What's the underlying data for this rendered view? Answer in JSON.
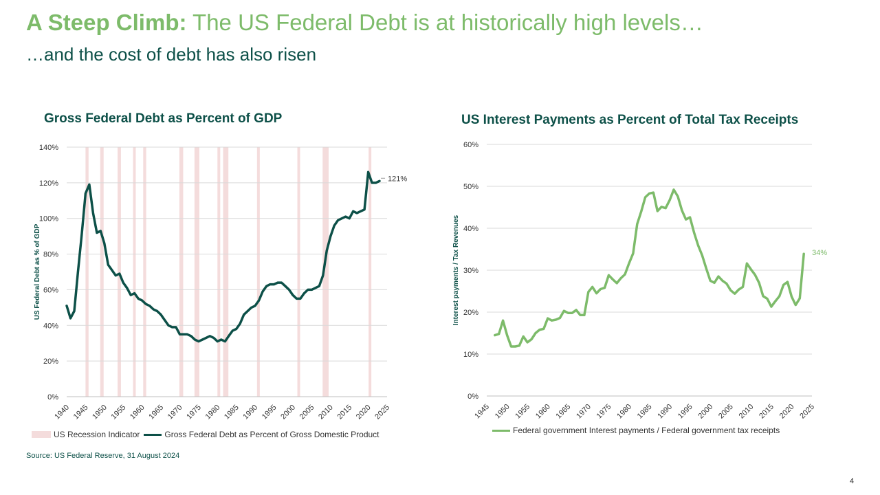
{
  "header": {
    "title_bold": "A Steep Climb:",
    "title_rest": " The US Federal Debt is at historically high levels…",
    "subtitle": "…and the cost of debt has also risen"
  },
  "colors": {
    "debt_line": "#0d5048",
    "interest_line": "#7dbb6a",
    "recession_band": "#f4dcdc",
    "title_green": "#7dbb6a",
    "dark_teal": "#0d5048"
  },
  "chart_data": [
    {
      "type": "line",
      "title": "Gross Federal Debt as Percent of GDP",
      "ylabel": "US Federal Debt as % of GDP",
      "xlabel": "",
      "xlim": [
        1940,
        2025
      ],
      "ylim": [
        0,
        140
      ],
      "x_ticks": [
        "1940",
        "1945",
        "1950",
        "1955",
        "1960",
        "1965",
        "1970",
        "1975",
        "1980",
        "1985",
        "1990",
        "1995",
        "2000",
        "2005",
        "2010",
        "2015",
        "2020",
        "2025"
      ],
      "y_ticks": [
        "0%",
        "20%",
        "40%",
        "60%",
        "80%",
        "100%",
        "120%",
        "140%"
      ],
      "grid": true,
      "legend_position": "bottom",
      "end_label": "121%",
      "recessions": [
        [
          1945,
          1945.8
        ],
        [
          1948.9,
          1949.8
        ],
        [
          1953.5,
          1954.4
        ],
        [
          1957.6,
          1958.3
        ],
        [
          1960.3,
          1961.1
        ],
        [
          1969.9,
          1970.9
        ],
        [
          1973.9,
          1975.2
        ],
        [
          1980,
          1980.5
        ],
        [
          1981.5,
          1982.9
        ],
        [
          1990.5,
          1991.2
        ],
        [
          2001.2,
          2001.9
        ],
        [
          2007.9,
          2009.5
        ],
        [
          2020.1,
          2020.5
        ]
      ],
      "series": [
        {
          "name": "US Recession Indicator",
          "values": []
        },
        {
          "name": "Gross Federal Debt as Percent of Gross Domestic Product",
          "x": [
            1940,
            1941,
            1942,
            1943,
            1944,
            1945,
            1946,
            1947,
            1948,
            1949,
            1950,
            1951,
            1952,
            1953,
            1954,
            1955,
            1956,
            1957,
            1958,
            1959,
            1960,
            1961,
            1962,
            1963,
            1964,
            1965,
            1966,
            1967,
            1968,
            1969,
            1970,
            1971,
            1972,
            1973,
            1974,
            1975,
            1976,
            1977,
            1978,
            1979,
            1980,
            1981,
            1982,
            1983,
            1984,
            1985,
            1986,
            1987,
            1988,
            1989,
            1990,
            1991,
            1992,
            1993,
            1994,
            1995,
            1996,
            1997,
            1998,
            1999,
            2000,
            2001,
            2002,
            2003,
            2004,
            2005,
            2006,
            2007,
            2008,
            2009,
            2010,
            2011,
            2012,
            2013,
            2014,
            2015,
            2016,
            2017,
            2018,
            2019,
            2020,
            2021,
            2022,
            2023
          ],
          "values": [
            51,
            44,
            48,
            70,
            91,
            114,
            119,
            103,
            92,
            93,
            86,
            74,
            71,
            68,
            69,
            64,
            61,
            57,
            58,
            55,
            54,
            52,
            51,
            49,
            48,
            46,
            43,
            40,
            39,
            39,
            35,
            35,
            35,
            34,
            32,
            31,
            32,
            33,
            34,
            33,
            31,
            32,
            31,
            34,
            37,
            38,
            41,
            46,
            48,
            50,
            51,
            54,
            59,
            62,
            63,
            63,
            64,
            64,
            62,
            60,
            57,
            55,
            55,
            58,
            60,
            60,
            61,
            62,
            68,
            82,
            90,
            96,
            99,
            100,
            101,
            100,
            104,
            103,
            104,
            105,
            126,
            120,
            120,
            121
          ]
        }
      ]
    },
    {
      "type": "line",
      "title": "US Interest Payments as Percent of Total Tax Receipts",
      "ylabel": "Interest payments / Tax Revenues",
      "xlabel": "",
      "xlim": [
        1945,
        2025
      ],
      "ylim": [
        0,
        60
      ],
      "x_ticks": [
        "1945",
        "1950",
        "1955",
        "1960",
        "1965",
        "1970",
        "1975",
        "1980",
        "1985",
        "1990",
        "1995",
        "2000",
        "2005",
        "2010",
        "2015",
        "2020",
        "2025"
      ],
      "y_ticks": [
        "0%",
        "10%",
        "20%",
        "30%",
        "40%",
        "50%",
        "60%"
      ],
      "grid": true,
      "legend_position": "bottom",
      "end_label": "34%",
      "series": [
        {
          "name": "Federal government  Interest payments / Federal government tax receipts",
          "x": [
            1947,
            1948,
            1949,
            1950,
            1951,
            1952,
            1953,
            1954,
            1955,
            1956,
            1957,
            1958,
            1959,
            1960,
            1961,
            1962,
            1963,
            1964,
            1965,
            1966,
            1967,
            1968,
            1969,
            1970,
            1971,
            1972,
            1973,
            1974,
            1975,
            1976,
            1977,
            1978,
            1979,
            1980,
            1981,
            1982,
            1983,
            1984,
            1985,
            1986,
            1987,
            1988,
            1989,
            1990,
            1991,
            1992,
            1993,
            1994,
            1995,
            1996,
            1997,
            1998,
            1999,
            2000,
            2001,
            2002,
            2003,
            2004,
            2005,
            2006,
            2007,
            2008,
            2009,
            2010,
            2011,
            2012,
            2013,
            2014,
            2015,
            2016,
            2017,
            2018,
            2019,
            2020,
            2021,
            2022,
            2023
          ],
          "values": [
            14.5,
            14.8,
            18,
            14.5,
            11.8,
            11.8,
            12,
            14.2,
            12.8,
            13.5,
            15,
            15.8,
            16,
            18.5,
            18,
            18.2,
            18.6,
            20.3,
            19.8,
            19.8,
            20.5,
            19.3,
            19.3,
            24.8,
            26,
            24.5,
            25.5,
            25.8,
            28.8,
            27.8,
            26.9,
            28.1,
            29,
            31.6,
            34,
            41,
            44,
            47.4,
            48.3,
            48.5,
            44.1,
            45.1,
            44.8,
            46.7,
            49.2,
            47.6,
            44.3,
            42.1,
            42.6,
            39,
            35.9,
            33.5,
            30.4,
            27.5,
            27,
            28.5,
            27.5,
            26.8,
            25.2,
            24.4,
            25.4,
            26,
            31.6,
            30.2,
            28.9,
            27,
            23.8,
            23.2,
            21.3,
            22.6,
            23.8,
            26.5,
            27.2,
            23.7,
            21.7,
            23.3,
            33.9
          ]
        }
      ]
    }
  ],
  "legend_left": {
    "recession": "US Recession Indicator",
    "debt": "Gross Federal Debt as Percent of Gross Domestic Product"
  },
  "legend_right": {
    "interest": "Federal government  Interest payments / Federal government tax receipts"
  },
  "footer": {
    "source": "Source: US Federal Reserve, 31 August 2024",
    "page_number": "4"
  }
}
